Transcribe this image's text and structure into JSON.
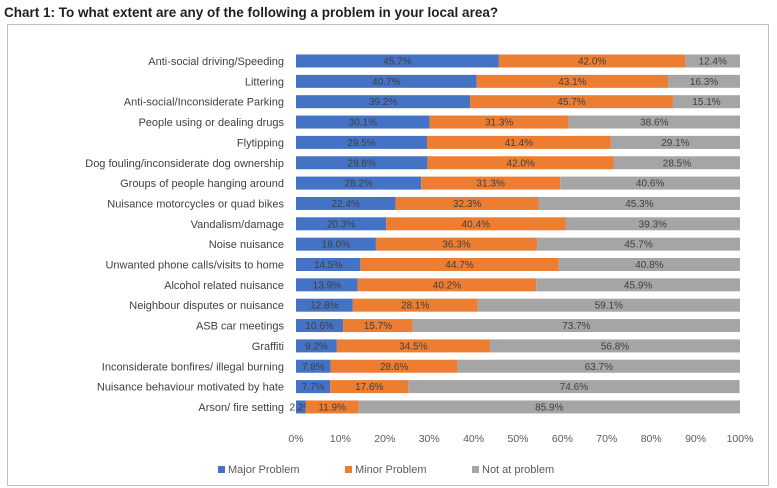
{
  "chart_data": {
    "type": "bar",
    "stacked": true,
    "orientation": "horizontal",
    "title": "Chart 1: To what extent are any of the following a problem in your local area?",
    "xlim": [
      0,
      100
    ],
    "x_ticks": [
      "0%",
      "10%",
      "20%",
      "30%",
      "40%",
      "50%",
      "60%",
      "70%",
      "80%",
      "90%",
      "100%"
    ],
    "legend_position": "bottom",
    "grid": false,
    "categories": [
      "Anti-social driving/Speeding",
      "Littering",
      "Anti-social/Inconsiderate Parking",
      "People using or dealing drugs",
      "Flytipping",
      "Dog fouling/inconsiderate dog ownership",
      "Groups of people hanging around",
      "Nuisance motorcycles or quad bikes",
      "Vandalism/damage",
      "Noise nuisance",
      "Unwanted phone calls/visits to home",
      "Alcohol related nuisance",
      "Neighbour disputes or nuisance",
      "ASB car meetings",
      "Graffiti",
      "Inconsiderate bonfires/ illegal burning",
      "Nuisance behaviour motivated by hate",
      "Arson/ fire setting"
    ],
    "series": [
      {
        "name": "Major Problem",
        "color": "#4472c4",
        "values": [
          45.7,
          40.7,
          39.2,
          30.1,
          29.5,
          29.6,
          28.2,
          22.4,
          20.3,
          18.0,
          14.5,
          13.9,
          12.8,
          10.6,
          9.2,
          7.8,
          7.7,
          2.2
        ],
        "labels": [
          "45.7%",
          "40.7%",
          "39.2%",
          "30.1%",
          "29.5%",
          "29.6%",
          "28.2%",
          "22.4%",
          "20.3%",
          "18.0%",
          "14.5%",
          "13.9%",
          "12.8%",
          "10.6%",
          "9.2%",
          "7.8%",
          "7.7%",
          "2.2%"
        ]
      },
      {
        "name": "Minor Problem",
        "color": "#ed7d31",
        "values": [
          42.0,
          43.1,
          45.7,
          31.3,
          41.4,
          42.0,
          31.3,
          32.3,
          40.4,
          36.3,
          44.7,
          40.2,
          28.1,
          15.7,
          34.5,
          28.6,
          17.6,
          11.9
        ],
        "labels": [
          "42.0%",
          "43.1%",
          "45.7%",
          "31.3%",
          "41.4%",
          "42.0%",
          "31.3%",
          "32.3%",
          "40.4%",
          "36.3%",
          "44.7%",
          "40.2%",
          "28.1%",
          "15.7%",
          "34.5%",
          "28.6%",
          "17.6%",
          "11.9%"
        ]
      },
      {
        "name": "Not at problem",
        "color": "#a5a5a5",
        "values": [
          12.4,
          16.3,
          15.1,
          38.6,
          29.1,
          28.5,
          40.6,
          45.3,
          39.3,
          45.7,
          40.8,
          45.9,
          59.1,
          73.7,
          56.8,
          63.7,
          74.6,
          85.9
        ],
        "labels": [
          "12.4%",
          "16.3%",
          "15.1%",
          "38.6%",
          "29.1%",
          "28.5%",
          "40.6%",
          "45.3%",
          "39.3%",
          "45.7%",
          "40.8%",
          "45.9%",
          "59.1%",
          "73.7%",
          "56.8%",
          "63.7%",
          "74.6%",
          "85.9%"
        ]
      }
    ]
  }
}
